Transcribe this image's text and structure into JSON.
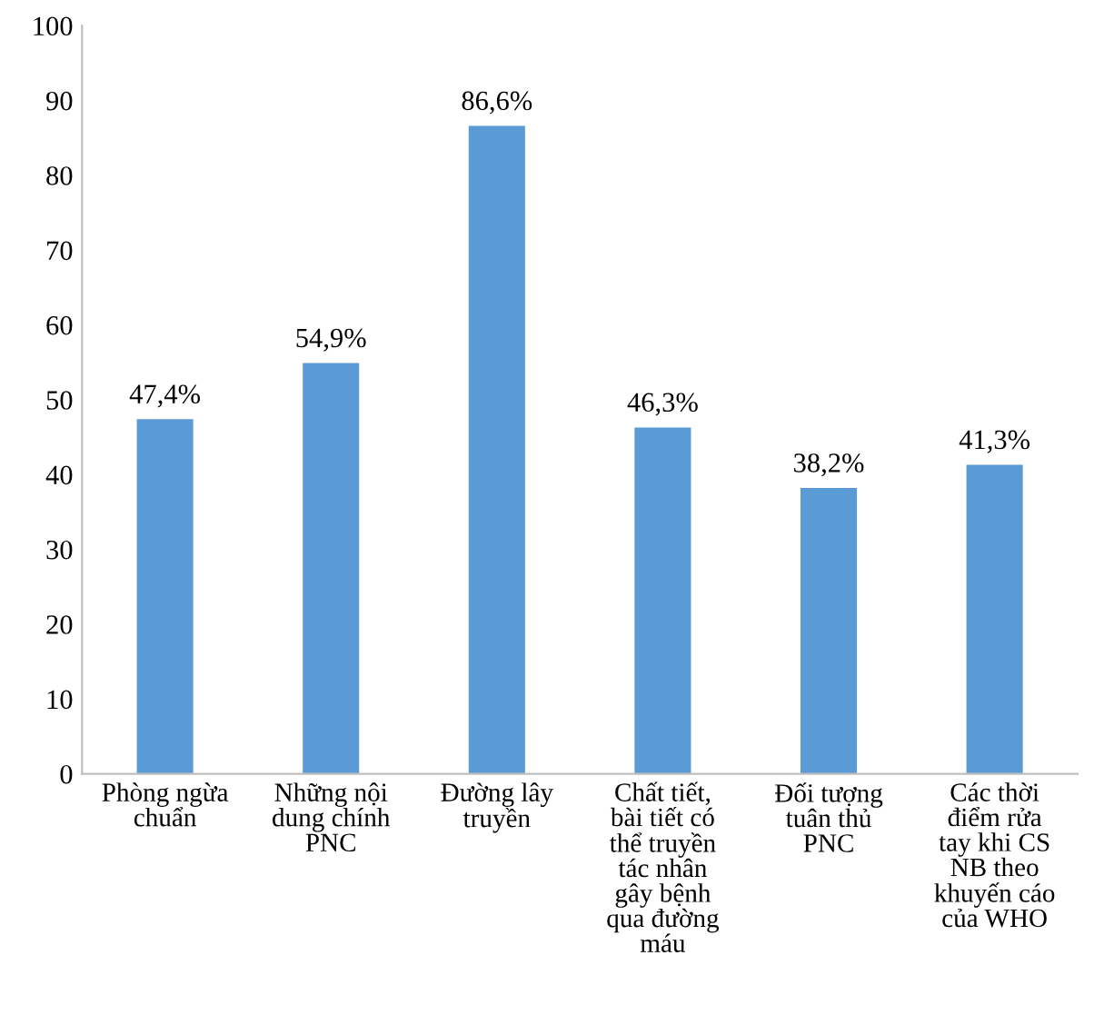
{
  "chart_data": {
    "type": "bar",
    "categories": [
      "Phòng ngừa\nchuẩn",
      "Những nội\ndung chính\nPNC",
      "Đường lây\ntruyền",
      "Chất tiết,\nbài tiết có\nthể truyền\ntác nhân\ngây bệnh\nqua đường\nmáu",
      "Đối tượng\ntuân thủ\nPNC",
      "Các thời\nđiểm rửa\ntay khi CS\nNB theo\nkhuyến cáo\ncủa WHO"
    ],
    "values": [
      47.4,
      54.9,
      86.6,
      46.3,
      38.2,
      41.3
    ],
    "value_labels": [
      "47,4%",
      "54,9%",
      "86,6%",
      "46,3%",
      "38,2%",
      "41,3%"
    ],
    "color": "#5b9bd5",
    "ylim": [
      0,
      100
    ],
    "yticks": [
      0,
      10,
      20,
      30,
      40,
      50,
      60,
      70,
      80,
      90,
      100
    ],
    "grid": false
  }
}
